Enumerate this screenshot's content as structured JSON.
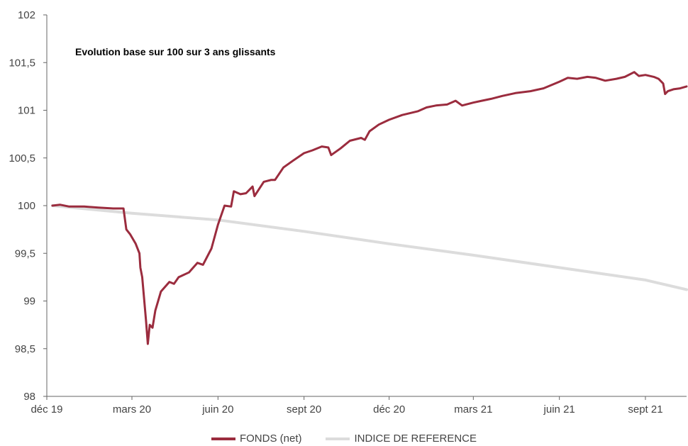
{
  "chart_data": {
    "type": "line",
    "title": "Evolution base sur 100 sur 3 ans glissants",
    "xlabel": "",
    "ylabel": "",
    "ylim": [
      98,
      102
    ],
    "y_ticks": [
      "98",
      "98,5",
      "99",
      "99,5",
      "100",
      "100,5",
      "101",
      "101,5",
      "102"
    ],
    "y_tick_values": [
      98,
      98.5,
      99,
      99.5,
      100,
      100.5,
      101,
      101.5,
      102
    ],
    "x_ticks": [
      "déc 19",
      "mars 20",
      "juin 20",
      "sept 20",
      "déc 20",
      "mars 21",
      "juin 21",
      "sept 21"
    ],
    "x_tick_dates": [
      "2019-12-01",
      "2020-03-01",
      "2020-06-01",
      "2020-09-01",
      "2020-12-01",
      "2021-03-01",
      "2021-06-01",
      "2021-09-01"
    ],
    "xlim": [
      "2019-12-01",
      "2021-10-15"
    ],
    "grid": false,
    "legend_position": "bottom",
    "series": [
      {
        "name": "FONDS (net)",
        "color": "#9b2c3e",
        "points": [
          [
            "2019-12-07",
            100.0
          ],
          [
            "2019-12-15",
            100.01
          ],
          [
            "2019-12-25",
            99.99
          ],
          [
            "2020-01-10",
            99.99
          ],
          [
            "2020-01-25",
            99.98
          ],
          [
            "2020-02-10",
            99.97
          ],
          [
            "2020-02-21",
            99.97
          ],
          [
            "2020-02-24",
            99.75
          ],
          [
            "2020-02-28",
            99.7
          ],
          [
            "2020-03-05",
            99.6
          ],
          [
            "2020-03-09",
            99.5
          ],
          [
            "2020-03-10",
            99.35
          ],
          [
            "2020-03-12",
            99.25
          ],
          [
            "2020-03-16",
            98.8
          ],
          [
            "2020-03-18",
            98.55
          ],
          [
            "2020-03-20",
            98.75
          ],
          [
            "2020-03-23",
            98.72
          ],
          [
            "2020-03-26",
            98.9
          ],
          [
            "2020-04-01",
            99.1
          ],
          [
            "2020-04-10",
            99.2
          ],
          [
            "2020-04-15",
            99.18
          ],
          [
            "2020-04-20",
            99.25
          ],
          [
            "2020-05-01",
            99.3
          ],
          [
            "2020-05-10",
            99.4
          ],
          [
            "2020-05-16",
            99.38
          ],
          [
            "2020-05-25",
            99.55
          ],
          [
            "2020-06-01",
            99.8
          ],
          [
            "2020-06-08",
            100.0
          ],
          [
            "2020-06-15",
            99.99
          ],
          [
            "2020-06-18",
            100.15
          ],
          [
            "2020-06-25",
            100.12
          ],
          [
            "2020-07-01",
            100.13
          ],
          [
            "2020-07-08",
            100.2
          ],
          [
            "2020-07-10",
            100.1
          ],
          [
            "2020-07-20",
            100.25
          ],
          [
            "2020-07-28",
            100.27
          ],
          [
            "2020-08-01",
            100.27
          ],
          [
            "2020-08-10",
            100.4
          ],
          [
            "2020-08-20",
            100.47
          ],
          [
            "2020-09-01",
            100.55
          ],
          [
            "2020-09-10",
            100.58
          ],
          [
            "2020-09-20",
            100.62
          ],
          [
            "2020-09-27",
            100.61
          ],
          [
            "2020-09-30",
            100.53
          ],
          [
            "2020-10-10",
            100.6
          ],
          [
            "2020-10-20",
            100.68
          ],
          [
            "2020-11-01",
            100.71
          ],
          [
            "2020-11-05",
            100.69
          ],
          [
            "2020-11-10",
            100.78
          ],
          [
            "2020-11-20",
            100.85
          ],
          [
            "2020-12-01",
            100.9
          ],
          [
            "2020-12-15",
            100.95
          ],
          [
            "2021-01-01",
            100.99
          ],
          [
            "2021-01-10",
            101.03
          ],
          [
            "2021-01-20",
            101.05
          ],
          [
            "2021-02-01",
            101.06
          ],
          [
            "2021-02-10",
            101.1
          ],
          [
            "2021-02-17",
            101.05
          ],
          [
            "2021-03-01",
            101.08
          ],
          [
            "2021-03-10",
            101.1
          ],
          [
            "2021-03-20",
            101.12
          ],
          [
            "2021-04-01",
            101.15
          ],
          [
            "2021-04-15",
            101.18
          ],
          [
            "2021-05-01",
            101.2
          ],
          [
            "2021-05-15",
            101.23
          ],
          [
            "2021-06-01",
            101.3
          ],
          [
            "2021-06-10",
            101.34
          ],
          [
            "2021-06-20",
            101.33
          ],
          [
            "2021-07-01",
            101.35
          ],
          [
            "2021-07-10",
            101.34
          ],
          [
            "2021-07-20",
            101.31
          ],
          [
            "2021-08-01",
            101.33
          ],
          [
            "2021-08-10",
            101.35
          ],
          [
            "2021-08-20",
            101.4
          ],
          [
            "2021-08-25",
            101.36
          ],
          [
            "2021-09-01",
            101.37
          ],
          [
            "2021-09-10",
            101.35
          ],
          [
            "2021-09-15",
            101.33
          ],
          [
            "2021-09-20",
            101.28
          ],
          [
            "2021-09-22",
            101.17
          ],
          [
            "2021-09-25",
            101.2
          ],
          [
            "2021-10-01",
            101.22
          ],
          [
            "2021-10-08",
            101.23
          ],
          [
            "2021-10-15",
            101.25
          ]
        ]
      },
      {
        "name": "INDICE DE REFERENCE",
        "color": "#dcdcdc",
        "points": [
          [
            "2019-12-07",
            100.0
          ],
          [
            "2020-03-01",
            99.92
          ],
          [
            "2020-06-01",
            99.85
          ],
          [
            "2020-09-01",
            99.73
          ],
          [
            "2020-12-01",
            99.6
          ],
          [
            "2021-03-01",
            99.48
          ],
          [
            "2021-06-01",
            99.35
          ],
          [
            "2021-09-01",
            99.22
          ],
          [
            "2021-10-15",
            99.12
          ]
        ]
      }
    ]
  }
}
